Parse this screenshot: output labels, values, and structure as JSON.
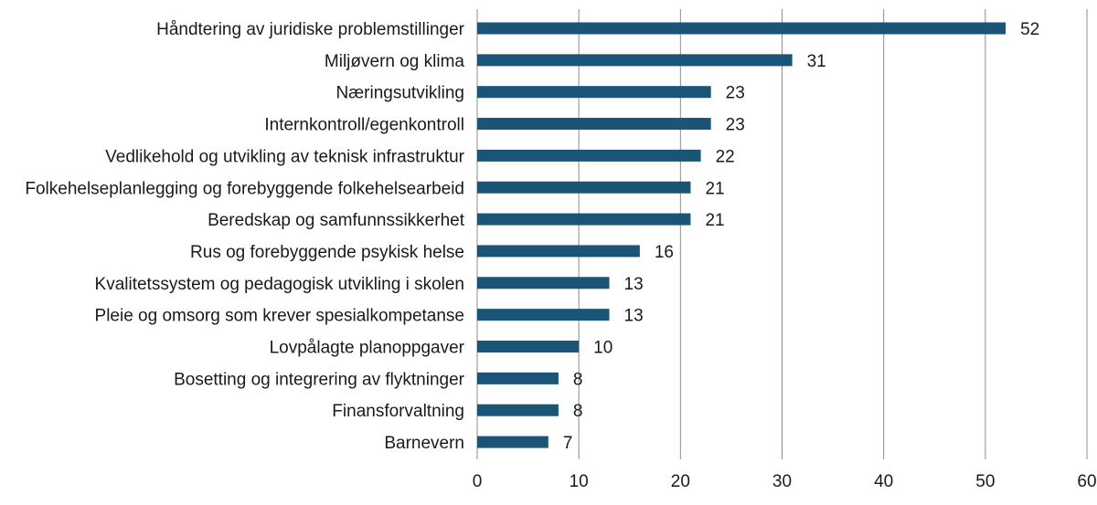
{
  "chart_data": {
    "type": "bar",
    "orientation": "horizontal",
    "categories": [
      "Håndtering av juridiske problemstillinger",
      "Miljøvern og klima",
      "Næringsutvikling",
      "Internkontroll/egenkontroll",
      "Vedlikehold og utvikling av teknisk infrastruktur",
      "Folkehelseplanlegging og forebyggende folkehelsearbeid",
      "Beredskap og samfunnssikkerhet",
      "Rus og forebyggende psykisk helse",
      "Kvalitetssystem og pedagogisk utvikling i skolen",
      "Pleie og omsorg som krever spesialkompetanse",
      "Lovpålagte planoppgaver",
      "Bosetting og integrering av flyktninger",
      "Finansforvaltning",
      "Barnevern"
    ],
    "values": [
      52,
      31,
      23,
      23,
      22,
      21,
      21,
      16,
      13,
      13,
      10,
      8,
      8,
      7
    ],
    "xlim": [
      0,
      60
    ],
    "xticks": [
      0,
      10,
      20,
      30,
      40,
      50,
      60
    ],
    "grid": true,
    "bar_color": "#1a5577",
    "title": "",
    "xlabel": "",
    "ylabel": ""
  }
}
